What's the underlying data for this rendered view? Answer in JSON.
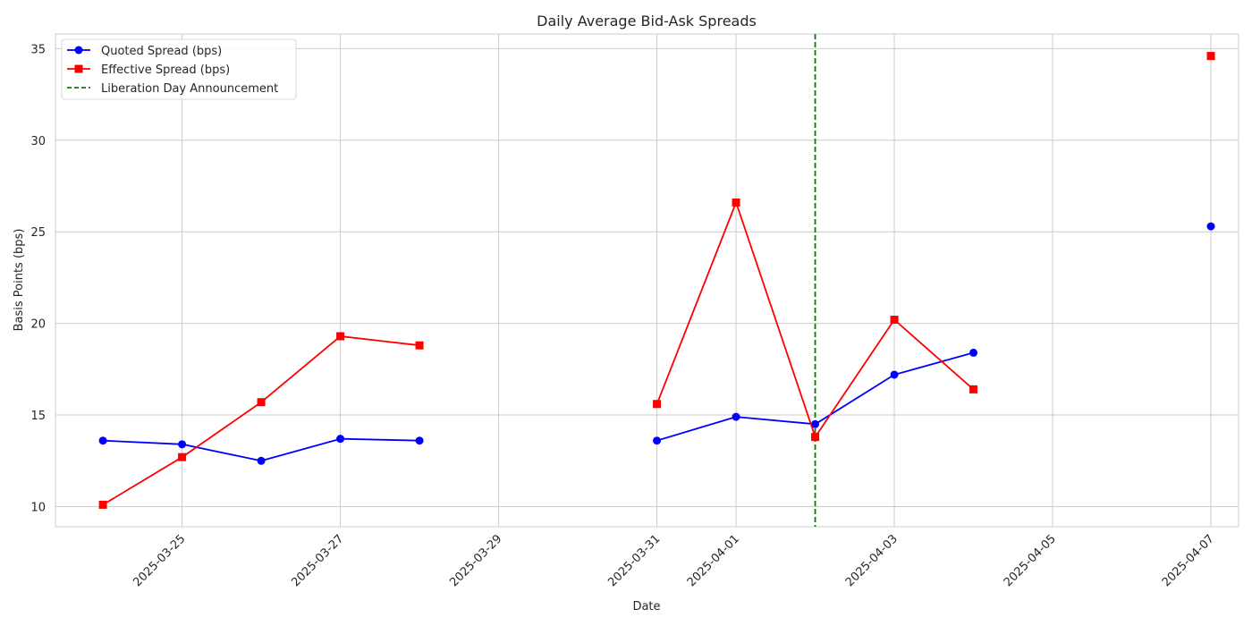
{
  "chart_data": {
    "type": "line",
    "title": "Daily Average Bid-Ask Spreads",
    "xlabel": "Date",
    "ylabel": "Basis Points (bps)",
    "x_tick_labels": [
      "2025-03-25",
      "2025-03-27",
      "2025-03-29",
      "2025-03-31",
      "2025-04-01",
      "2025-04-03",
      "2025-04-05",
      "2025-04-07"
    ],
    "y_tick_labels": [
      "10",
      "15",
      "20",
      "25",
      "30",
      "35"
    ],
    "xlim": [
      "2025-03-23",
      "2025-04-07"
    ],
    "ylim": [
      8.9,
      35.8
    ],
    "grid": true,
    "legend_position": "top-left",
    "series": [
      {
        "name": "Quoted Spread (bps)",
        "color": "#0000ff",
        "marker": "circle",
        "points": [
          {
            "date": "2025-03-24",
            "value": 13.6
          },
          {
            "date": "2025-03-25",
            "value": 13.4
          },
          {
            "date": "2025-03-26",
            "value": 12.5
          },
          {
            "date": "2025-03-27",
            "value": 13.7
          },
          {
            "date": "2025-03-28",
            "value": 13.6
          },
          {
            "date": "2025-03-29",
            "value": null
          },
          {
            "date": "2025-03-30",
            "value": null
          },
          {
            "date": "2025-03-31",
            "value": 13.6
          },
          {
            "date": "2025-04-01",
            "value": 14.9
          },
          {
            "date": "2025-04-02",
            "value": 14.5
          },
          {
            "date": "2025-04-03",
            "value": 17.2
          },
          {
            "date": "2025-04-04",
            "value": 18.4
          },
          {
            "date": "2025-04-05",
            "value": null
          },
          {
            "date": "2025-04-06",
            "value": null
          },
          {
            "date": "2025-04-07",
            "value": 25.3
          }
        ]
      },
      {
        "name": "Effective Spread (bps)",
        "color": "#ff0000",
        "marker": "square",
        "points": [
          {
            "date": "2025-03-24",
            "value": 10.1
          },
          {
            "date": "2025-03-25",
            "value": 12.7
          },
          {
            "date": "2025-03-26",
            "value": 15.7
          },
          {
            "date": "2025-03-27",
            "value": 19.3
          },
          {
            "date": "2025-03-28",
            "value": 18.8
          },
          {
            "date": "2025-03-29",
            "value": null
          },
          {
            "date": "2025-03-30",
            "value": null
          },
          {
            "date": "2025-03-31",
            "value": 15.6
          },
          {
            "date": "2025-04-01",
            "value": 26.6
          },
          {
            "date": "2025-04-02",
            "value": 13.8
          },
          {
            "date": "2025-04-03",
            "value": 20.2
          },
          {
            "date": "2025-04-04",
            "value": 16.4
          },
          {
            "date": "2025-04-05",
            "value": null
          },
          {
            "date": "2025-04-06",
            "value": null
          },
          {
            "date": "2025-04-07",
            "value": 34.6
          }
        ]
      }
    ],
    "annotations": [
      {
        "type": "vertical-line",
        "date": "2025-04-02",
        "label": "Liberation Day Announcement",
        "color": "#008000",
        "style": "dashed"
      }
    ]
  }
}
